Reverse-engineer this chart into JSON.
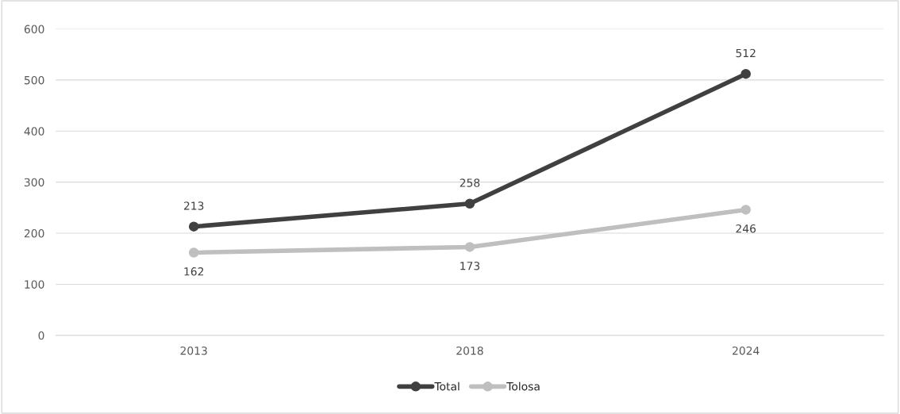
{
  "chart_data": {
    "type": "line",
    "categories": [
      "2013",
      "2018",
      "2024"
    ],
    "series": [
      {
        "name": "Total",
        "color": "#404040",
        "values": [
          213,
          258,
          512
        ]
      },
      {
        "name": "Tolosa",
        "color": "#bfbfbf",
        "values": [
          162,
          173,
          246
        ]
      }
    ],
    "ylim": [
      0,
      600
    ],
    "yticks": [
      0,
      100,
      200,
      300,
      400,
      500,
      600
    ],
    "grid": "y",
    "legend": "bottom",
    "marker": "circle",
    "data_labels": true
  }
}
